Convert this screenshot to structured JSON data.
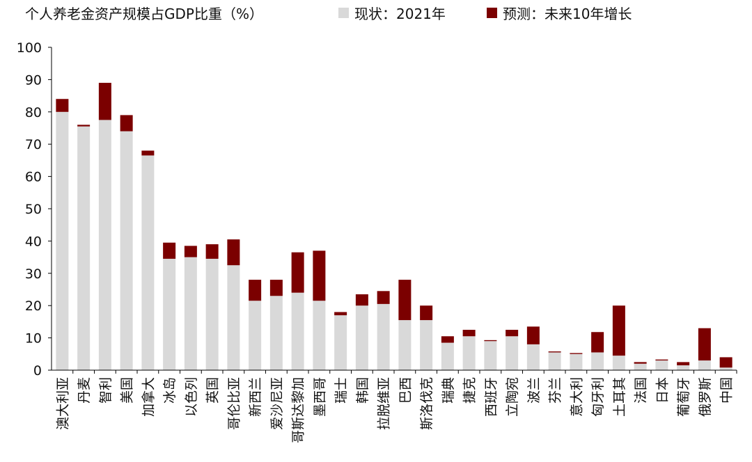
{
  "chart_data": {
    "type": "bar",
    "stacked": true,
    "title": "个人养老金资产规模占GDP比重（%）",
    "ylim": [
      0,
      100
    ],
    "yticks": [
      0,
      10,
      20,
      30,
      40,
      50,
      60,
      70,
      80,
      90,
      100
    ],
    "grid": false,
    "legend_position": "top",
    "categories": [
      "澳大利亚",
      "丹麦",
      "智利",
      "美国",
      "加拿大",
      "冰岛",
      "以色列",
      "英国",
      "哥伦比亚",
      "新西兰",
      "爱沙尼亚",
      "哥斯达黎加",
      "墨西哥",
      "瑞士",
      "韩国",
      "拉脱维亚",
      "巴西",
      "斯洛伐克",
      "瑞典",
      "捷克",
      "西班牙",
      "立陶宛",
      "波兰",
      "芬兰",
      "意大利",
      "匈牙利",
      "土耳其",
      "法国",
      "日本",
      "葡萄牙",
      "俄罗斯",
      "中国"
    ],
    "series": [
      {
        "name": "现状：2021年",
        "color": "#d9d9d9",
        "values": [
          80.0,
          75.5,
          77.5,
          74.0,
          66.5,
          34.5,
          35.0,
          34.5,
          32.5,
          21.5,
          23.0,
          24.0,
          21.5,
          17.0,
          20.0,
          20.5,
          15.5,
          15.5,
          8.5,
          10.5,
          9.0,
          10.5,
          8.0,
          5.5,
          5.0,
          5.5,
          4.5,
          2.0,
          3.0,
          1.5,
          3.0,
          0.8
        ]
      },
      {
        "name": "预测：未来10年增长",
        "color": "#7b0000",
        "values": [
          4.0,
          0.5,
          11.5,
          5.0,
          1.5,
          5.0,
          3.5,
          4.5,
          8.0,
          6.5,
          5.0,
          12.5,
          15.5,
          1.0,
          3.5,
          4.0,
          12.5,
          4.5,
          2.0,
          2.0,
          0.3,
          2.0,
          5.5,
          0.3,
          0.3,
          6.3,
          15.5,
          0.5,
          0.3,
          1.0,
          10.0,
          3.2
        ]
      }
    ]
  }
}
